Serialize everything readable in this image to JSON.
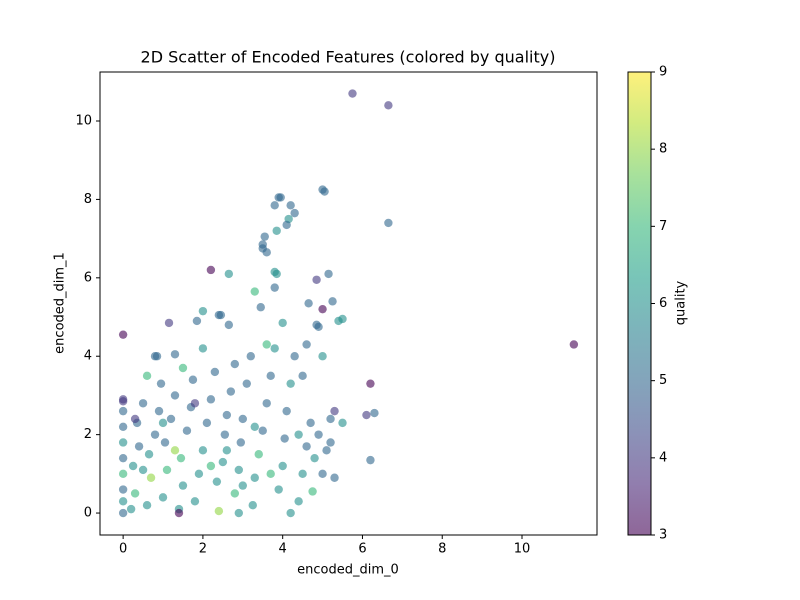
{
  "chart_data": {
    "type": "scatter",
    "title": "2D Scatter of Encoded Features (colored by quality)",
    "x_label": "encoded_dim_0",
    "y_label": "encoded_dim_1",
    "xlim": [
      -0.58,
      11.88
    ],
    "ylim": [
      -0.56,
      11.25
    ],
    "xticks": [
      0,
      2,
      4,
      6,
      8,
      10
    ],
    "yticks": [
      0,
      2,
      4,
      6,
      8,
      10
    ],
    "colormap": "viridis",
    "alpha": 0.6,
    "colorbar": {
      "label": "quality",
      "lim": [
        3,
        9
      ],
      "ticks": [
        3,
        4,
        5,
        6,
        7,
        8,
        9
      ]
    },
    "x": [
      5.75,
      6.65,
      11.3,
      6.65,
      5.0,
      5.05,
      3.9,
      3.95,
      4.2,
      3.8,
      4.3,
      4.15,
      4.1,
      3.85,
      3.55,
      3.5,
      3.5,
      3.6,
      2.2,
      2.65,
      3.8,
      3.85,
      4.85,
      5.15,
      3.8,
      3.3,
      5.0,
      4.65,
      5.25,
      3.45,
      2.0,
      2.4,
      2.45,
      1.85,
      1.15,
      4.0,
      4.85,
      4.9,
      5.4,
      5.5,
      0.0,
      2.65,
      6.2,
      6.1,
      6.3,
      6.2,
      0.85,
      0.8,
      1.3,
      0,
      0,
      0,
      0,
      0,
      0,
      0,
      0,
      0,
      0,
      0.2,
      0.3,
      0.25,
      0.4,
      0.35,
      0.5,
      0.6,
      0.7,
      0.65,
      0.8,
      0.9,
      0.95,
      1.0,
      1.1,
      1.05,
      1.2,
      1.3,
      1.4,
      1.5,
      1.45,
      1.6,
      1.7,
      1.75,
      1.8,
      1.9,
      2.0,
      2.1,
      2.2,
      2.3,
      2.4,
      2.35,
      2.5,
      2.55,
      2.6,
      2.7,
      2.8,
      2.9,
      2.95,
      3.0,
      3.1,
      3.2,
      3.25,
      3.3,
      3.4,
      3.5,
      3.6,
      3.7,
      3.8,
      3.9,
      4.0,
      4.05,
      4.1,
      4.2,
      4.3,
      4.4,
      4.5,
      4.6,
      4.7,
      4.75,
      4.8,
      4.9,
      5.0,
      5.1,
      5.2,
      5.3,
      5.3,
      5.5,
      5.0,
      4.5,
      2.0,
      1.5,
      2.8,
      3.6,
      4.6,
      0.5,
      1.3,
      2.2,
      3.0,
      3.7,
      2.6,
      1.0,
      0.3,
      4.4,
      5.2,
      4.2,
      2.9,
      1.4,
      0.6,
      1.8,
      3.3
    ],
    "values": [
      10.7,
      10.4,
      4.3,
      7.4,
      8.25,
      8.2,
      8.05,
      8.05,
      7.85,
      7.85,
      7.65,
      7.5,
      7.35,
      7.2,
      7.05,
      6.85,
      6.75,
      6.65,
      6.2,
      6.1,
      6.15,
      6.1,
      5.95,
      6.1,
      5.75,
      5.65,
      5.2,
      5.35,
      5.4,
      5.25,
      5.15,
      5.05,
      5.05,
      4.9,
      4.85,
      4.85,
      4.8,
      4.75,
      4.9,
      4.95,
      4.55,
      4.8,
      3.3,
      2.5,
      2.55,
      1.35,
      4.0,
      4.0,
      4.05,
      0,
      0.3,
      0.6,
      1.0,
      1.4,
      1.8,
      2.2,
      2.6,
      2.9,
      2.85,
      0.1,
      0.5,
      1.2,
      1.7,
      2.3,
      2.8,
      0.2,
      0.9,
      1.5,
      2.0,
      2.6,
      3.3,
      0.4,
      1.1,
      1.8,
      2.4,
      3.0,
      0.1,
      0.7,
      1.4,
      2.1,
      2.7,
      3.4,
      0.3,
      1.0,
      1.6,
      2.3,
      2.9,
      3.6,
      0.05,
      0.8,
      1.3,
      2.0,
      2.5,
      3.1,
      0.5,
      1.1,
      1.8,
      2.4,
      3.3,
      4.0,
      0.2,
      0.9,
      1.5,
      2.1,
      2.8,
      3.5,
      4.2,
      0.6,
      1.2,
      1.9,
      2.6,
      3.3,
      4.0,
      0.3,
      1.0,
      1.7,
      2.3,
      0.55,
      1.4,
      2.0,
      1.0,
      1.6,
      2.4,
      0.9,
      2.6,
      2.3,
      4.0,
      3.5,
      4.2,
      3.7,
      3.8,
      4.3,
      4.3,
      1.1,
      1.6,
      1.2,
      0.7,
      1.0,
      1.6,
      2.3,
      2.4,
      2.0,
      1.8,
      0.0,
      0.0,
      0.0,
      3.5,
      2.8,
      2.2
    ],
    "color_values": [
      4,
      4,
      3,
      5,
      5,
      5,
      5,
      5,
      5,
      5,
      5,
      6,
      5,
      6,
      5,
      5,
      5,
      5,
      3,
      6,
      6,
      6,
      4,
      5,
      5,
      7,
      3,
      5,
      5,
      5,
      6,
      5,
      5,
      5,
      4,
      6,
      5,
      5,
      6,
      6,
      3,
      5,
      3,
      4,
      5,
      5,
      5,
      5,
      5,
      5,
      6,
      5,
      7,
      5,
      6,
      5,
      5,
      4,
      4,
      6,
      7,
      6,
      5,
      5,
      5,
      6,
      8,
      6,
      5,
      5,
      5,
      6,
      7,
      5,
      5,
      5,
      6,
      6,
      7,
      5,
      5,
      5,
      6,
      6,
      6,
      5,
      5,
      5,
      8,
      6,
      6,
      5,
      5,
      5,
      7,
      6,
      5,
      5,
      5,
      5,
      6,
      6,
      7,
      5,
      5,
      5,
      6,
      6,
      6,
      5,
      5,
      6,
      5,
      6,
      6,
      5,
      5,
      7,
      6,
      5,
      5,
      5,
      5,
      5,
      4,
      6,
      6,
      5,
      6,
      7,
      5,
      7,
      5,
      6,
      8,
      7,
      6,
      7,
      6,
      6,
      4,
      6,
      5,
      6,
      6,
      3,
      7,
      4,
      6
    ]
  }
}
